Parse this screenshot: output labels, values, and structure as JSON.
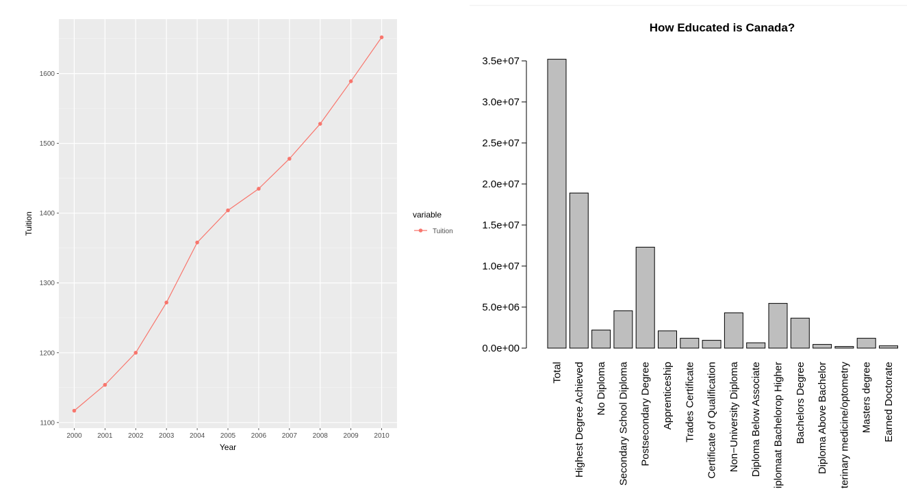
{
  "colors": {
    "panel_bg": "#ebebeb",
    "grid_major": "#ffffff",
    "grid_minor": "#f5f5f5",
    "series_line": "#f8766d",
    "bar_fill": "#bebebe",
    "bar_stroke": "#000000",
    "top_border": "#eeeeee"
  },
  "chart_data": [
    {
      "type": "line",
      "title": "",
      "xlabel": "Year",
      "ylabel": "Tuition",
      "x": [
        2000,
        2001,
        2002,
        2003,
        2004,
        2005,
        2006,
        2007,
        2008,
        2009,
        2010
      ],
      "x_tick_labels": [
        "2000",
        "2001",
        "2002",
        "2003",
        "2004",
        "2005",
        "2006",
        "2007",
        "2008",
        "2009",
        "2010"
      ],
      "y_ticks": [
        1100,
        1200,
        1300,
        1400,
        1500,
        1600
      ],
      "y_tick_labels": [
        "1100",
        "1200",
        "1300",
        "1400",
        "1500",
        "1600"
      ],
      "ylim": [
        1092,
        1678
      ],
      "grid": true,
      "legend": {
        "title": "variable",
        "placement": "right",
        "entries": [
          "Tuition"
        ]
      },
      "series": [
        {
          "name": "Tuition",
          "values": [
            1117,
            1154,
            1200,
            1272,
            1358,
            1404,
            1435,
            1478,
            1528,
            1589,
            1652
          ]
        }
      ]
    },
    {
      "type": "bar",
      "title": "How Educated is Canada?",
      "xlabel": "",
      "ylabel": "",
      "categories": [
        "Total",
        "Highest Degree Achieved",
        "No Diploma",
        "Secondary School Diploma",
        "Postsecondary Degree",
        "Apprenticeship",
        "Trades Certificate",
        "Certificate of Qualification",
        "Non−University Diploma",
        "Diploma Below Associate",
        "Diplomaat Bachelorор Higher",
        "Bachelors Degree",
        "Diploma Above Bachelor",
        "Veterinary medicine/optometry",
        "Masters degree",
        "Earned Doctorate"
      ],
      "values": [
        35200000,
        18900000,
        2200000,
        4550000,
        12300000,
        2100000,
        1200000,
        950000,
        4300000,
        650000,
        5450000,
        3650000,
        450000,
        200000,
        1200000,
        280000
      ],
      "y_ticks": [
        0,
        5000000,
        10000000,
        15000000,
        20000000,
        25000000,
        30000000,
        35000000
      ],
      "y_tick_labels": [
        "0.0e+00",
        "5.0e+06",
        "1.0e+07",
        "1.5e+07",
        "2.0e+07",
        "2.5e+07",
        "3.0e+07",
        "3.5e+07"
      ],
      "ylim": [
        0,
        35000000
      ],
      "grid": false,
      "legend": null
    }
  ]
}
